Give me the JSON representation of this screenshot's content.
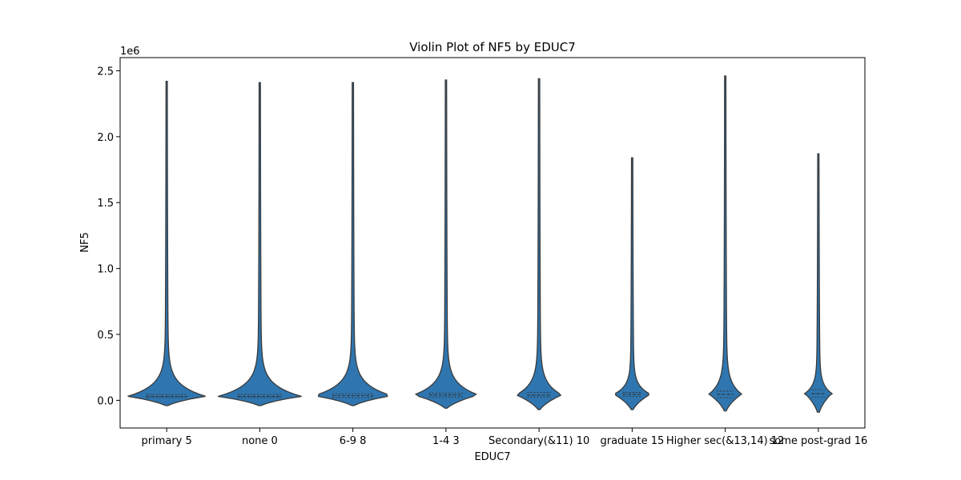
{
  "chart_data": {
    "type": "violin",
    "title": "Violin Plot of NF5 by EDUC7",
    "xlabel": "EDUC7",
    "ylabel": "NF5",
    "y_offset_label": "1e6",
    "y_unit_multiplier": 1000000,
    "ylim": [
      -0.21,
      2.6
    ],
    "yticks": [
      0.0,
      0.5,
      1.0,
      1.5,
      2.0,
      2.5
    ],
    "ytick_labels": [
      "0.0",
      "0.5",
      "1.0",
      "1.5",
      "2.0",
      "2.5"
    ],
    "fill_color": "#2f76b0",
    "edge_color": "#3a3a3a",
    "grid": false,
    "categories": [
      {
        "label": "primary 5",
        "min": -0.04,
        "max": 2.42,
        "median": 0.03,
        "q1": 0.02,
        "q3": 0.045,
        "max_half_width": 0.4
      },
      {
        "label": "none 0",
        "min": -0.04,
        "max": 2.41,
        "median": 0.03,
        "q1": 0.02,
        "q3": 0.045,
        "max_half_width": 0.43
      },
      {
        "label": "6-9 8",
        "min": -0.04,
        "max": 2.41,
        "median": 0.035,
        "q1": 0.02,
        "q3": 0.05,
        "max_half_width": 0.4
      },
      {
        "label": "1-4 3",
        "min": -0.06,
        "max": 2.43,
        "median": 0.04,
        "q1": 0.025,
        "q3": 0.055,
        "max_half_width": 0.33
      },
      {
        "label": "Secondary(&11) 10",
        "min": -0.07,
        "max": 2.44,
        "median": 0.04,
        "q1": 0.025,
        "q3": 0.06,
        "max_half_width": 0.23
      },
      {
        "label": "graduate 15",
        "min": -0.07,
        "max": 1.84,
        "median": 0.045,
        "q1": 0.03,
        "q3": 0.06,
        "max_half_width": 0.18
      },
      {
        "label": "Higher sec(&13,14) 12",
        "min": -0.08,
        "max": 2.46,
        "median": 0.045,
        "q1": 0.02,
        "q3": 0.07,
        "max_half_width": 0.16
      },
      {
        "label": "some post-grad 16",
        "min": -0.09,
        "max": 1.87,
        "median": 0.05,
        "q1": 0.025,
        "q3": 0.08,
        "max_half_width": 0.13
      }
    ]
  }
}
